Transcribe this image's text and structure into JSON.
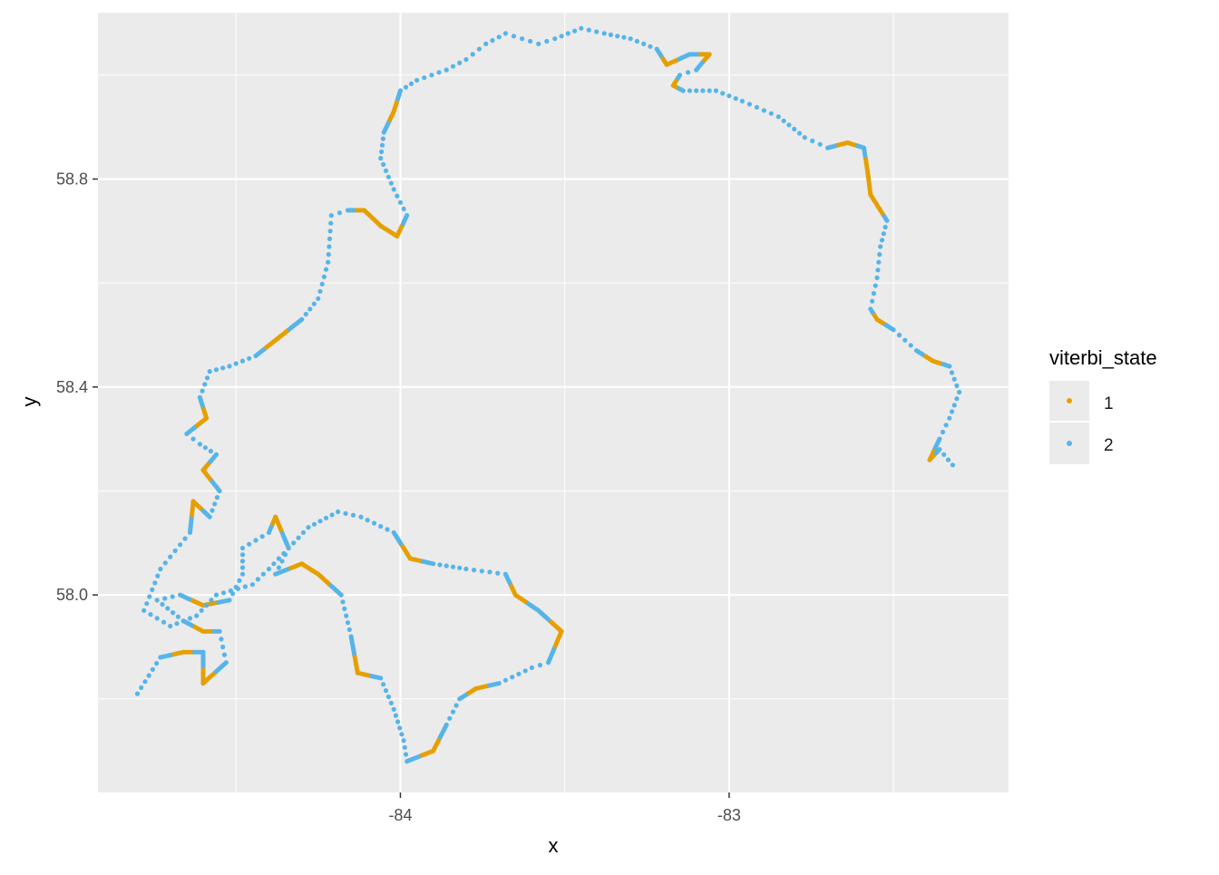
{
  "chart_data": {
    "type": "scatter",
    "xlabel": "x",
    "ylabel": "y",
    "xlim": [
      -84.92,
      -82.15
    ],
    "ylim": [
      57.62,
      59.12
    ],
    "x_ticks": [
      -84,
      -83
    ],
    "x_tick_labels": [
      "-84",
      "-83"
    ],
    "y_ticks": [
      58.0,
      58.4,
      58.8
    ],
    "y_tick_labels": [
      "58.0",
      "58.4",
      "58.8"
    ],
    "grid": true,
    "legend": {
      "title": "viterbi_state",
      "position": "right"
    },
    "colors": {
      "1": "#E69F00",
      "2": "#56B4E9",
      "panel": "#EBEBEB",
      "grid": "#FFFFFF"
    },
    "track": [
      [
        -84.8,
        57.81,
        2
      ],
      [
        -84.73,
        57.88,
        2
      ],
      [
        -84.66,
        57.89,
        1
      ],
      [
        -84.6,
        57.89,
        2
      ],
      [
        -84.6,
        57.83,
        1
      ],
      [
        -84.53,
        57.87,
        2
      ],
      [
        -84.55,
        57.93,
        2
      ],
      [
        -84.6,
        57.93,
        1
      ],
      [
        -84.66,
        57.95,
        2
      ],
      [
        -84.74,
        57.99,
        2
      ],
      [
        -84.67,
        58.0,
        2
      ],
      [
        -84.6,
        57.98,
        1
      ],
      [
        -84.52,
        57.99,
        2
      ],
      [
        -84.48,
        58.04,
        2
      ],
      [
        -84.48,
        58.09,
        2
      ],
      [
        -84.4,
        58.12,
        2
      ],
      [
        -84.38,
        58.15,
        1
      ],
      [
        -84.34,
        58.09,
        2
      ],
      [
        -84.38,
        58.04,
        2
      ],
      [
        -84.3,
        58.06,
        1
      ],
      [
        -84.25,
        58.04,
        1
      ],
      [
        -84.18,
        58.0,
        2
      ],
      [
        -84.15,
        57.92,
        2
      ],
      [
        -84.13,
        57.85,
        1
      ],
      [
        -84.06,
        57.84,
        2
      ],
      [
        -84.02,
        57.78,
        2
      ],
      [
        -83.99,
        57.72,
        2
      ],
      [
        -83.98,
        57.68,
        2
      ],
      [
        -83.9,
        57.7,
        1
      ],
      [
        -83.86,
        57.75,
        2
      ],
      [
        -83.82,
        57.8,
        2
      ],
      [
        -83.77,
        57.82,
        1
      ],
      [
        -83.7,
        57.83,
        2
      ],
      [
        -83.6,
        57.86,
        2
      ],
      [
        -83.55,
        57.87,
        2
      ],
      [
        -83.51,
        57.93,
        1
      ],
      [
        -83.58,
        57.97,
        2
      ],
      [
        -83.65,
        58.0,
        1
      ],
      [
        -83.68,
        58.04,
        2
      ],
      [
        -83.8,
        58.05,
        2
      ],
      [
        -83.9,
        58.06,
        2
      ],
      [
        -83.97,
        58.07,
        1
      ],
      [
        -84.02,
        58.12,
        2
      ],
      [
        -84.12,
        58.15,
        2
      ],
      [
        -84.19,
        58.16,
        2
      ],
      [
        -84.28,
        58.13,
        2
      ],
      [
        -84.4,
        58.05,
        2
      ],
      [
        -84.45,
        58.02,
        2
      ],
      [
        -84.56,
        58.0,
        2
      ],
      [
        -84.62,
        57.96,
        2
      ],
      [
        -84.7,
        57.94,
        2
      ],
      [
        -84.78,
        57.97,
        2
      ],
      [
        -84.73,
        58.05,
        2
      ],
      [
        -84.64,
        58.12,
        2
      ],
      [
        -84.63,
        58.18,
        1
      ],
      [
        -84.58,
        58.15,
        2
      ],
      [
        -84.55,
        58.2,
        2
      ],
      [
        -84.6,
        58.24,
        1
      ],
      [
        -84.56,
        58.27,
        2
      ],
      [
        -84.61,
        58.29,
        2
      ],
      [
        -84.65,
        58.31,
        2
      ],
      [
        -84.59,
        58.34,
        1
      ],
      [
        -84.61,
        58.38,
        2
      ],
      [
        -84.58,
        58.43,
        2
      ],
      [
        -84.52,
        58.44,
        2
      ],
      [
        -84.44,
        58.46,
        2
      ],
      [
        -84.38,
        58.49,
        1
      ],
      [
        -84.3,
        58.53,
        2
      ],
      [
        -84.25,
        58.57,
        2
      ],
      [
        -84.22,
        58.64,
        2
      ],
      [
        -84.21,
        58.73,
        2
      ],
      [
        -84.16,
        58.74,
        2
      ],
      [
        -84.11,
        58.74,
        1
      ],
      [
        -84.06,
        58.71,
        1
      ],
      [
        -84.01,
        58.69,
        1
      ],
      [
        -83.98,
        58.73,
        2
      ],
      [
        -84.02,
        58.78,
        2
      ],
      [
        -84.06,
        58.84,
        2
      ],
      [
        -84.05,
        58.89,
        2
      ],
      [
        -84.02,
        58.93,
        1
      ],
      [
        -84.0,
        58.97,
        2
      ],
      [
        -83.95,
        58.99,
        2
      ],
      [
        -83.86,
        59.01,
        2
      ],
      [
        -83.8,
        59.03,
        2
      ],
      [
        -83.74,
        59.06,
        2
      ],
      [
        -83.68,
        59.08,
        2
      ],
      [
        -83.63,
        59.07,
        2
      ],
      [
        -83.58,
        59.06,
        2
      ],
      [
        -83.53,
        59.07,
        2
      ],
      [
        -83.45,
        59.09,
        2
      ],
      [
        -83.38,
        59.08,
        2
      ],
      [
        -83.3,
        59.07,
        2
      ],
      [
        -83.22,
        59.05,
        2
      ],
      [
        -83.19,
        59.02,
        1
      ],
      [
        -83.12,
        59.04,
        2
      ],
      [
        -83.06,
        59.04,
        1
      ],
      [
        -83.1,
        59.01,
        2
      ],
      [
        -83.15,
        59.0,
        2
      ],
      [
        -83.17,
        58.98,
        1
      ],
      [
        -83.14,
        58.97,
        2
      ],
      [
        -83.04,
        58.97,
        2
      ],
      [
        -82.96,
        58.95,
        2
      ],
      [
        -82.85,
        58.92,
        2
      ],
      [
        -82.77,
        58.88,
        2
      ],
      [
        -82.7,
        58.86,
        2
      ],
      [
        -82.64,
        58.87,
        1
      ],
      [
        -82.59,
        58.86,
        2
      ],
      [
        -82.58,
        58.82,
        1
      ],
      [
        -82.57,
        58.77,
        1
      ],
      [
        -82.54,
        58.74,
        1
      ],
      [
        -82.52,
        58.72,
        2
      ],
      [
        -82.54,
        58.67,
        2
      ],
      [
        -82.55,
        58.61,
        2
      ],
      [
        -82.57,
        58.55,
        2
      ],
      [
        -82.55,
        58.53,
        1
      ],
      [
        -82.5,
        58.51,
        2
      ],
      [
        -82.43,
        58.47,
        2
      ],
      [
        -82.38,
        58.45,
        1
      ],
      [
        -82.33,
        58.44,
        2
      ],
      [
        -82.3,
        58.39,
        2
      ],
      [
        -82.33,
        58.34,
        2
      ],
      [
        -82.36,
        58.3,
        2
      ],
      [
        -82.39,
        58.26,
        1
      ],
      [
        -82.36,
        58.28,
        2
      ],
      [
        -82.32,
        58.25,
        2
      ]
    ]
  }
}
